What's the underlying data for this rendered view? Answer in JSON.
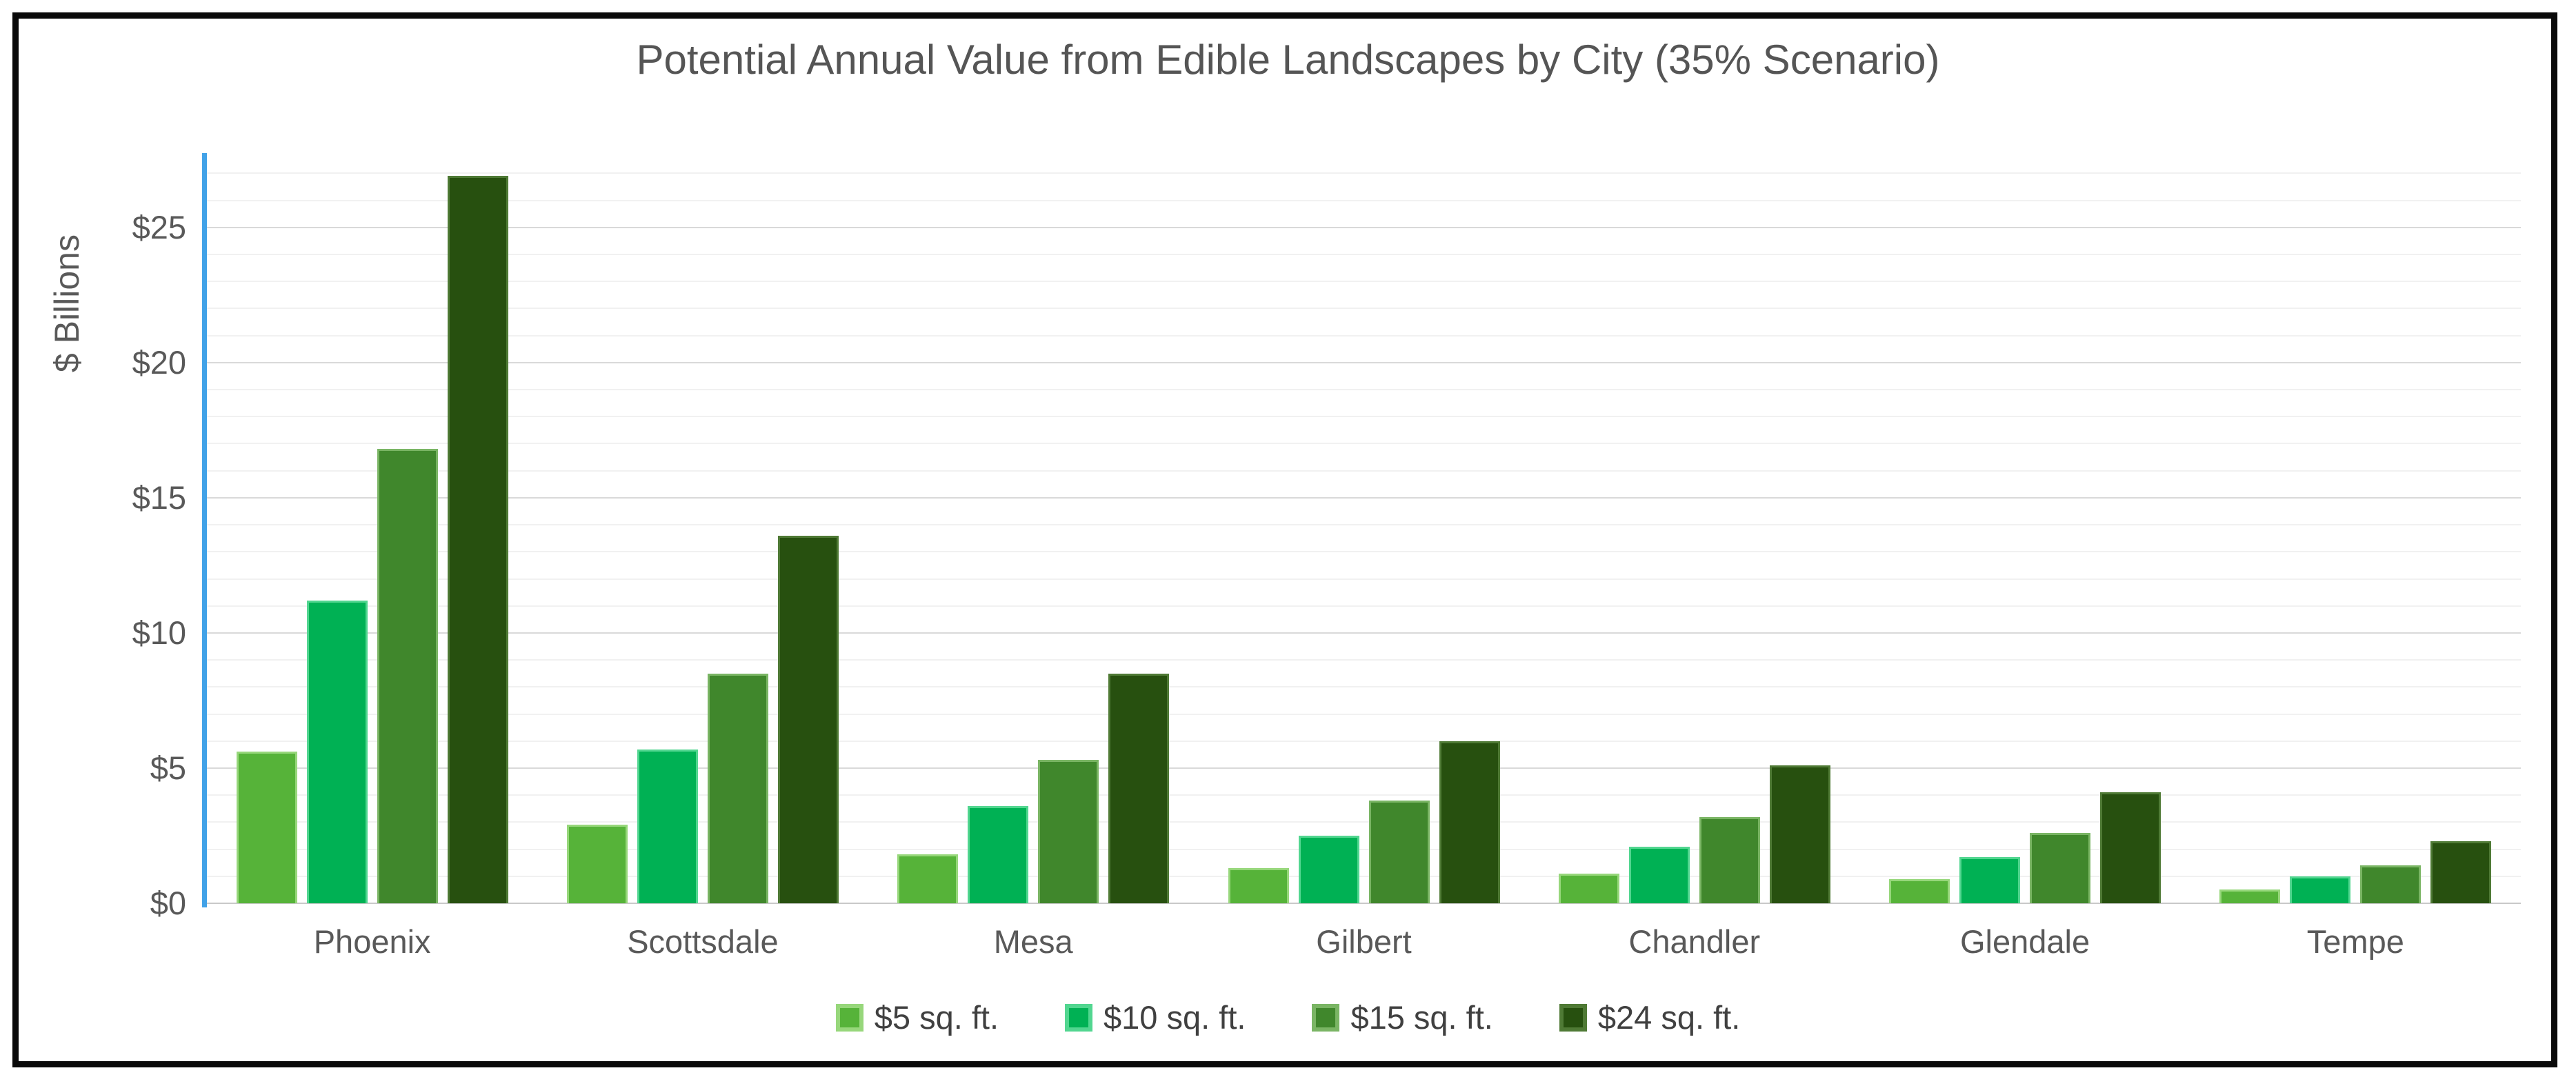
{
  "chart_data": {
    "type": "bar",
    "title": "Potential Annual Value from Edible Landscapes by City (35% Scenario)",
    "ylabel": "$ Billions",
    "xlabel": "",
    "categories": [
      "Phoenix",
      "Scottsdale",
      "Mesa",
      "Gilbert",
      "Chandler",
      "Glendale",
      "Tempe"
    ],
    "series": [
      {
        "name": "$5 sq. ft.",
        "color": "#56b339",
        "border_color": "#97d77b",
        "values": [
          5.6,
          2.9,
          1.8,
          1.3,
          1.1,
          0.9,
          0.5
        ]
      },
      {
        "name": "$10 sq. ft.",
        "color": "#00b154",
        "border_color": "#52d690",
        "values": [
          11.2,
          5.7,
          3.6,
          2.5,
          2.1,
          1.7,
          1.0
        ]
      },
      {
        "name": "$15 sq. ft.",
        "color": "#40872c",
        "border_color": "#7ab564",
        "values": [
          16.8,
          8.5,
          5.3,
          3.8,
          3.2,
          2.6,
          1.4
        ]
      },
      {
        "name": "$24 sq. ft.",
        "color": "#27500f",
        "border_color": "#4f7a35",
        "values": [
          26.9,
          13.6,
          8.5,
          6.0,
          5.1,
          4.1,
          2.3
        ]
      }
    ],
    "y_ticks": [
      "$0",
      "$5",
      "$10",
      "$15",
      "$20",
      "$25"
    ],
    "y_tick_values": [
      0,
      5,
      10,
      15,
      20,
      25
    ],
    "ylim": [
      0,
      27.75
    ],
    "minor_grid_step": 1,
    "major_grid_step": 5,
    "grid": "on",
    "legend_position": "bottom",
    "axis_line_color": "#41a2e8",
    "frame_border_color": "#0a0a0a"
  }
}
